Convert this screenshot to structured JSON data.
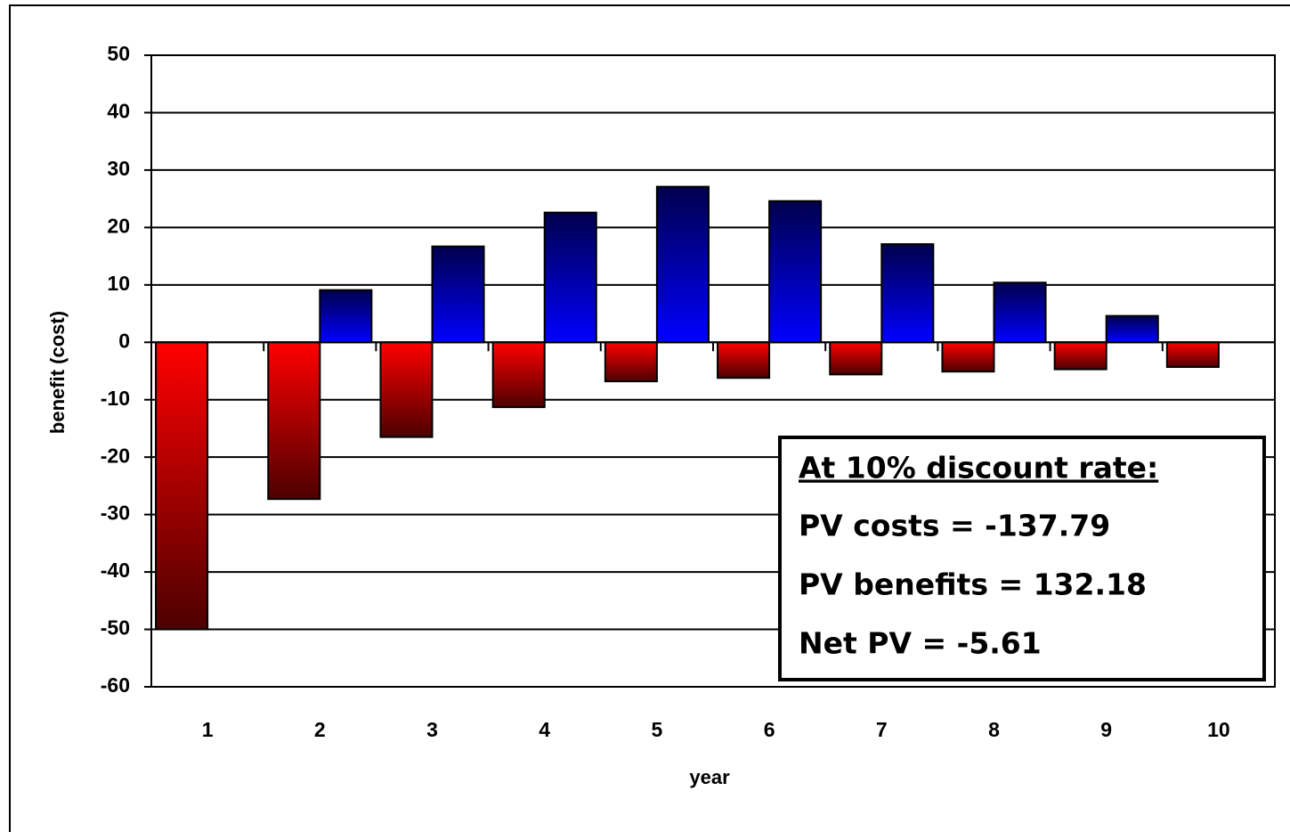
{
  "chart_data": {
    "type": "bar",
    "categories": [
      "1",
      "2",
      "3",
      "4",
      "5",
      "6",
      "7",
      "8",
      "9",
      "10"
    ],
    "series": [
      {
        "color": "#ff0000",
        "values": [
          -50,
          -27.3,
          -16.5,
          -11.3,
          -6.8,
          -6.2,
          -5.6,
          -5.1,
          -4.7,
          -4.3
        ]
      },
      {
        "color": "#0000ff",
        "values": [
          null,
          9.1,
          16.7,
          22.6,
          27.1,
          24.6,
          17.1,
          10.4,
          4.6,
          null
        ]
      }
    ],
    "ylim": [
      -60,
      50
    ],
    "yticks": [
      50,
      40,
      30,
      20,
      10,
      0,
      -10,
      -20,
      -30,
      -40,
      -50,
      -60
    ],
    "grid": true,
    "x_label": "year",
    "y_label": "benefit (cost)",
    "annotations": [
      "At 10% discount rate:",
      "PV costs = -137.79",
      "PV benefits = 132.18",
      "Net PV = -5.61"
    ]
  }
}
